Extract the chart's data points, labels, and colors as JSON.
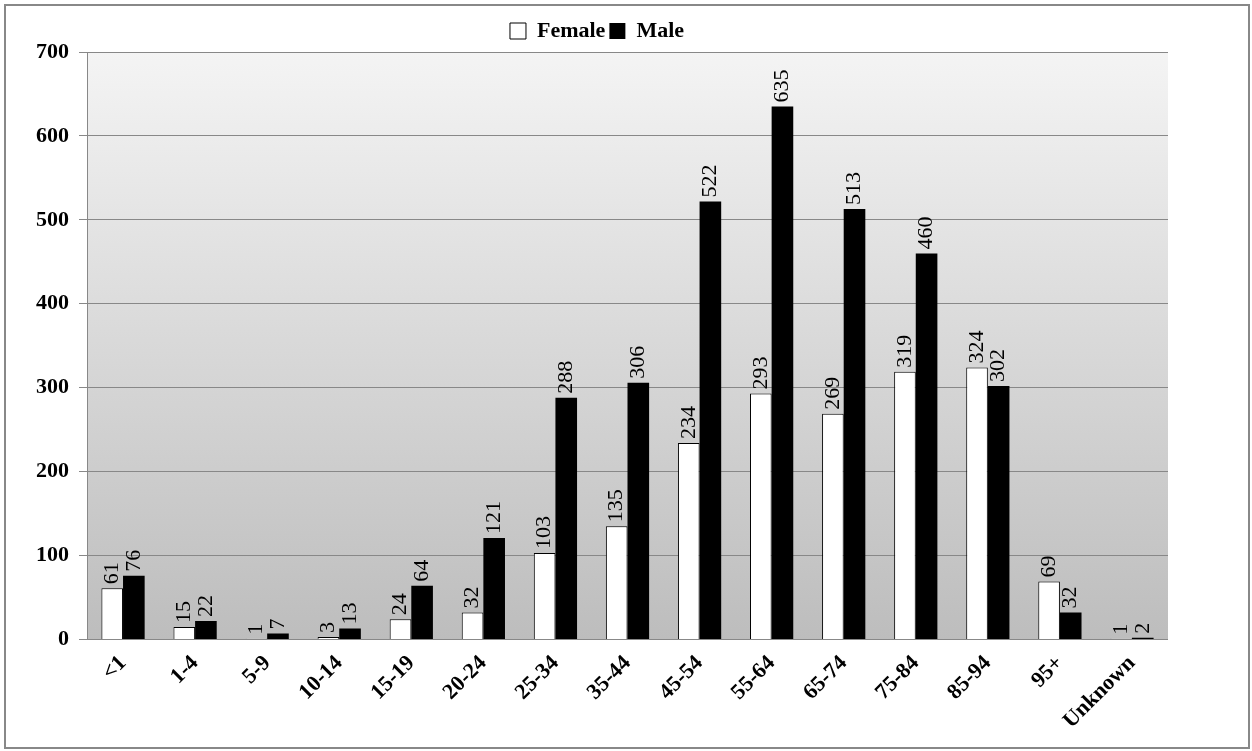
{
  "chart_data": {
    "type": "bar",
    "categories": [
      "<1",
      "1-4",
      "5-9",
      "10-14",
      "15-19",
      "20-24",
      "25-34",
      "35-44",
      "45-54",
      "55-64",
      "65-74",
      "75-84",
      "85-94",
      "95+",
      "Unknown"
    ],
    "series": [
      {
        "name": "Female",
        "color": "#ffffff",
        "values": [
          61,
          15,
          1,
          3,
          24,
          32,
          103,
          135,
          234,
          293,
          269,
          319,
          324,
          69,
          1
        ]
      },
      {
        "name": "Male",
        "color": "#000000",
        "values": [
          76,
          22,
          7,
          13,
          64,
          121,
          288,
          306,
          522,
          635,
          513,
          460,
          302,
          32,
          2
        ]
      }
    ],
    "ylim": [
      0,
      700
    ],
    "yticks": [
      0,
      100,
      200,
      300,
      400,
      500,
      600,
      700
    ],
    "grid": "y",
    "legend": "top",
    "data_labels": true
  }
}
